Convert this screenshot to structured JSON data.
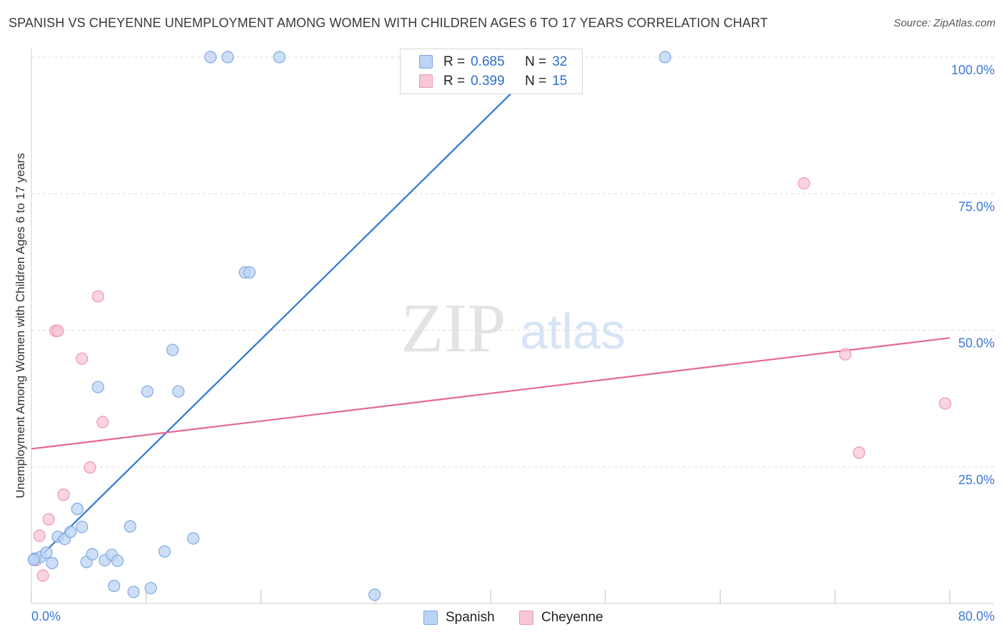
{
  "title": "SPANISH VS CHEYENNE UNEMPLOYMENT AMONG WOMEN WITH CHILDREN AGES 6 TO 17 YEARS CORRELATION CHART",
  "source": "Source: ZipAtlas.com",
  "watermark": {
    "zip": "ZIP",
    "atlas": "atlas"
  },
  "legend": {
    "r_label": "R =",
    "n_label": "N =",
    "rows": [
      {
        "series": "Spanish",
        "r": "0.685",
        "n": "32"
      },
      {
        "series": "Cheyenne",
        "r": "0.399",
        "n": "15"
      }
    ]
  },
  "colors": {
    "spanish_fill": "#bcd4f4",
    "spanish_stroke": "#7ea8e0",
    "spanish_line": "#2f77d3",
    "cheyenne_fill": "#f8c6d4",
    "cheyenne_stroke": "#eb99b1",
    "cheyenne_line": "#e56994",
    "axis_label": "#3c78d8",
    "grid": "#dddddd"
  },
  "chart_data": {
    "type": "scatter",
    "title": "SPANISH VS CHEYENNE UNEMPLOYMENT AMONG WOMEN WITH CHILDREN AGES 6 TO 17 YEARS CORRELATION CHART",
    "xlabel": "",
    "ylabel": "Unemployment Among Women with Children Ages 6 to 17 years",
    "xlim": [
      0,
      80
    ],
    "ylim": [
      0,
      100
    ],
    "x_tick_labels": [
      {
        "value": 0,
        "label": "0.0%"
      },
      {
        "value": 80,
        "label": "80.0%"
      }
    ],
    "y_tick_labels": [
      {
        "value": 25,
        "label": "25.0%"
      },
      {
        "value": 50,
        "label": "50.0%"
      },
      {
        "value": 75,
        "label": "75.0%"
      },
      {
        "value": 100,
        "label": "100.0%"
      }
    ],
    "series": [
      {
        "name": "Spanish",
        "points": [
          [
            0.3,
            8.2
          ],
          [
            0.8,
            8.5
          ],
          [
            1.3,
            9.3
          ],
          [
            1.8,
            7.4
          ],
          [
            2.3,
            12.2
          ],
          [
            2.9,
            11.8
          ],
          [
            3.4,
            13.1
          ],
          [
            4.0,
            17.3
          ],
          [
            4.4,
            14.0
          ],
          [
            4.8,
            7.6
          ],
          [
            5.3,
            9.0
          ],
          [
            5.8,
            39.6
          ],
          [
            6.4,
            7.9
          ],
          [
            7.0,
            8.9
          ],
          [
            7.5,
            7.8
          ],
          [
            7.2,
            3.2
          ],
          [
            8.6,
            14.1
          ],
          [
            8.9,
            2.1
          ],
          [
            10.1,
            38.8
          ],
          [
            10.4,
            2.8
          ],
          [
            11.6,
            9.5
          ],
          [
            12.3,
            46.4
          ],
          [
            12.8,
            38.8
          ],
          [
            14.1,
            11.9
          ],
          [
            15.6,
            100.0
          ],
          [
            17.1,
            100.0
          ],
          [
            18.6,
            60.6
          ],
          [
            19.0,
            60.6
          ],
          [
            21.6,
            100.0
          ],
          [
            29.9,
            1.6
          ],
          [
            55.2,
            100.0
          ],
          [
            0.2,
            8.0
          ]
        ],
        "trend": {
          "x": [
            0.0,
            45.0
          ],
          "y": [
            7.0,
            100.0
          ]
        }
      },
      {
        "name": "Cheyenne",
        "points": [
          [
            0.4,
            7.9
          ],
          [
            0.7,
            12.4
          ],
          [
            1.0,
            5.1
          ],
          [
            1.5,
            15.4
          ],
          [
            2.1,
            49.9
          ],
          [
            2.3,
            49.9
          ],
          [
            2.8,
            19.9
          ],
          [
            4.4,
            44.8
          ],
          [
            5.1,
            24.9
          ],
          [
            5.8,
            56.2
          ],
          [
            6.2,
            33.2
          ],
          [
            67.3,
            76.9
          ],
          [
            70.9,
            45.6
          ],
          [
            72.1,
            27.6
          ],
          [
            79.6,
            36.6
          ]
        ],
        "trend": {
          "x": [
            0.0,
            80.0
          ],
          "y": [
            28.3,
            48.6
          ]
        }
      }
    ]
  }
}
